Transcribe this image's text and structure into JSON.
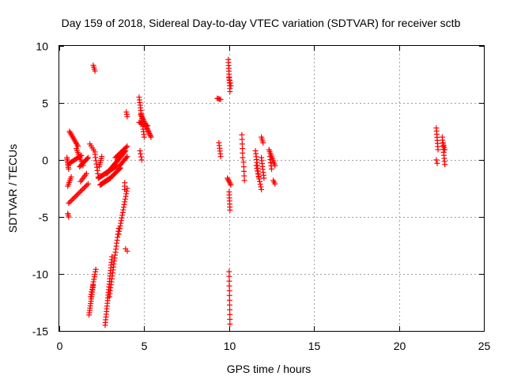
{
  "chart_data": {
    "type": "scatter",
    "title": "Day 159 of 2018, Sidereal Day-to-day VTEC variation (SDTVAR) for receiver sctb",
    "xlabel": "GPS time / hours",
    "ylabel": "SDTVAR / TECUs",
    "xlim": [
      0,
      25
    ],
    "ylim": [
      -15,
      10
    ],
    "xticks": [
      0,
      5,
      10,
      15,
      20,
      25
    ],
    "xtick_labels": [
      "0",
      "5",
      "10",
      "15",
      "20",
      "25"
    ],
    "yticks": [
      -15,
      -10,
      -5,
      0,
      5,
      10
    ],
    "ytick_labels": [
      "-15",
      "-10",
      "-5",
      "0",
      "5",
      "10"
    ],
    "grid": true,
    "marker": "+",
    "series": [
      {
        "name": "SDTVAR",
        "color": "#ff0000",
        "segments": [
          {
            "x0": 0.45,
            "y0": 0.2,
            "x1": 0.55,
            "y1": -0.8,
            "n": 8
          },
          {
            "x0": 0.5,
            "y0": -2.3,
            "x1": 0.7,
            "y1": -1.5,
            "n": 6
          },
          {
            "x0": 0.6,
            "y0": 2.5,
            "x1": 1.1,
            "y1": 1.2,
            "n": 12
          },
          {
            "x0": 0.6,
            "y0": -0.3,
            "x1": 1.3,
            "y1": 0.4,
            "n": 12
          },
          {
            "x0": 1.0,
            "y0": 1.0,
            "x1": 1.4,
            "y1": -0.5,
            "n": 10
          },
          {
            "x0": 0.55,
            "y0": -3.8,
            "x1": 1.7,
            "y1": -2.1,
            "n": 16
          },
          {
            "x0": 1.2,
            "y0": -0.6,
            "x1": 1.7,
            "y1": 0.2,
            "n": 10
          },
          {
            "x0": 1.25,
            "y0": -1.9,
            "x1": 1.6,
            "y1": -1.2,
            "n": 6
          },
          {
            "x0": 0.5,
            "y0": -4.7,
            "x1": 0.55,
            "y1": -5.0,
            "n": 3
          },
          {
            "x0": 1.8,
            "y0": 1.4,
            "x1": 2.1,
            "y1": 0.7,
            "n": 5
          },
          {
            "x0": 2.0,
            "y0": 8.3,
            "x1": 2.1,
            "y1": 7.8,
            "n": 4
          },
          {
            "x0": 1.75,
            "y0": -13.6,
            "x1": 2.0,
            "y1": -11.0,
            "n": 14
          },
          {
            "x0": 1.85,
            "y0": -12.0,
            "x1": 2.15,
            "y1": -9.6,
            "n": 12
          },
          {
            "x0": 2.1,
            "y0": 0.5,
            "x1": 2.3,
            "y1": -1.5,
            "n": 8
          },
          {
            "x0": 2.35,
            "y0": -0.6,
            "x1": 2.5,
            "y1": 0.3,
            "n": 6
          },
          {
            "x0": 2.4,
            "y0": -2.2,
            "x1": 3.0,
            "y1": -1.6,
            "n": 22
          },
          {
            "x0": 2.3,
            "y0": -1.6,
            "x1": 3.4,
            "y1": -0.5,
            "n": 26
          },
          {
            "x0": 2.8,
            "y0": -1.2,
            "x1": 3.9,
            "y1": 0.8,
            "n": 26
          },
          {
            "x0": 3.0,
            "y0": -1.6,
            "x1": 3.6,
            "y1": -0.7,
            "n": 14
          },
          {
            "x0": 3.3,
            "y0": 0.2,
            "x1": 4.0,
            "y1": 1.2,
            "n": 12
          },
          {
            "x0": 3.5,
            "y0": -0.6,
            "x1": 4.0,
            "y1": 0.3,
            "n": 10
          },
          {
            "x0": 2.7,
            "y0": -14.5,
            "x1": 3.1,
            "y1": -8.5,
            "n": 26
          },
          {
            "x0": 2.95,
            "y0": -12.0,
            "x1": 3.5,
            "y1": -6.0,
            "n": 24
          },
          {
            "x0": 3.5,
            "y0": -6.5,
            "x1": 4.0,
            "y1": -2.5,
            "n": 18
          },
          {
            "x0": 3.85,
            "y0": -2.6,
            "x1": 3.85,
            "y1": -2.0,
            "n": 3
          },
          {
            "x0": 3.9,
            "y0": -7.8,
            "x1": 4.0,
            "y1": -8.0,
            "n": 2
          },
          {
            "x0": 3.95,
            "y0": 4.2,
            "x1": 4.0,
            "y1": 3.8,
            "n": 3
          },
          {
            "x0": 4.7,
            "y0": 5.5,
            "x1": 5.0,
            "y1": 2.0,
            "n": 16
          },
          {
            "x0": 4.8,
            "y0": 4.0,
            "x1": 5.4,
            "y1": 2.0,
            "n": 20
          },
          {
            "x0": 4.7,
            "y0": 3.3,
            "x1": 5.2,
            "y1": 3.0,
            "n": 10
          },
          {
            "x0": 4.75,
            "y0": 0.8,
            "x1": 4.85,
            "y1": 0.0,
            "n": 4
          },
          {
            "x0": 9.3,
            "y0": 5.4,
            "x1": 9.5,
            "y1": 5.3,
            "n": 4
          },
          {
            "x0": 9.4,
            "y0": 1.5,
            "x1": 9.5,
            "y1": 0.3,
            "n": 6
          },
          {
            "x0": 9.95,
            "y0": 8.8,
            "x1": 10.05,
            "y1": 6.0,
            "n": 12
          },
          {
            "x0": 10.0,
            "y0": 7.2,
            "x1": 10.1,
            "y1": 6.5,
            "n": 4
          },
          {
            "x0": 9.9,
            "y0": -1.6,
            "x1": 10.1,
            "y1": -2.2,
            "n": 6
          },
          {
            "x0": 10.0,
            "y0": -2.8,
            "x1": 10.05,
            "y1": -4.4,
            "n": 7
          },
          {
            "x0": 10.0,
            "y0": -9.8,
            "x1": 10.05,
            "y1": -14.4,
            "n": 12
          },
          {
            "x0": 10.75,
            "y0": 2.2,
            "x1": 10.8,
            "y1": 0.2,
            "n": 6
          },
          {
            "x0": 10.85,
            "y0": -0.2,
            "x1": 10.9,
            "y1": -1.8,
            "n": 5
          },
          {
            "x0": 11.55,
            "y0": 0.8,
            "x1": 11.75,
            "y1": -1.5,
            "n": 10
          },
          {
            "x0": 11.6,
            "y0": -0.5,
            "x1": 11.9,
            "y1": -2.6,
            "n": 10
          },
          {
            "x0": 11.9,
            "y0": 2.0,
            "x1": 12.0,
            "y1": 1.5,
            "n": 4
          },
          {
            "x0": 11.9,
            "y0": 0.2,
            "x1": 12.05,
            "y1": -1.6,
            "n": 8
          },
          {
            "x0": 12.35,
            "y0": 0.9,
            "x1": 12.7,
            "y1": -0.5,
            "n": 10
          },
          {
            "x0": 12.4,
            "y0": 0.3,
            "x1": 12.5,
            "y1": -0.8,
            "n": 5
          },
          {
            "x0": 12.6,
            "y0": -1.8,
            "x1": 12.7,
            "y1": -2.1,
            "n": 3
          },
          {
            "x0": 22.2,
            "y0": 2.8,
            "x1": 22.3,
            "y1": 0.9,
            "n": 8
          },
          {
            "x0": 22.2,
            "y0": 0.0,
            "x1": 22.25,
            "y1": -0.3,
            "n": 2
          },
          {
            "x0": 22.55,
            "y0": 2.0,
            "x1": 22.7,
            "y1": -0.4,
            "n": 10
          },
          {
            "x0": 22.6,
            "y0": 1.5,
            "x1": 22.7,
            "y1": 0.9,
            "n": 4
          }
        ]
      }
    ]
  }
}
